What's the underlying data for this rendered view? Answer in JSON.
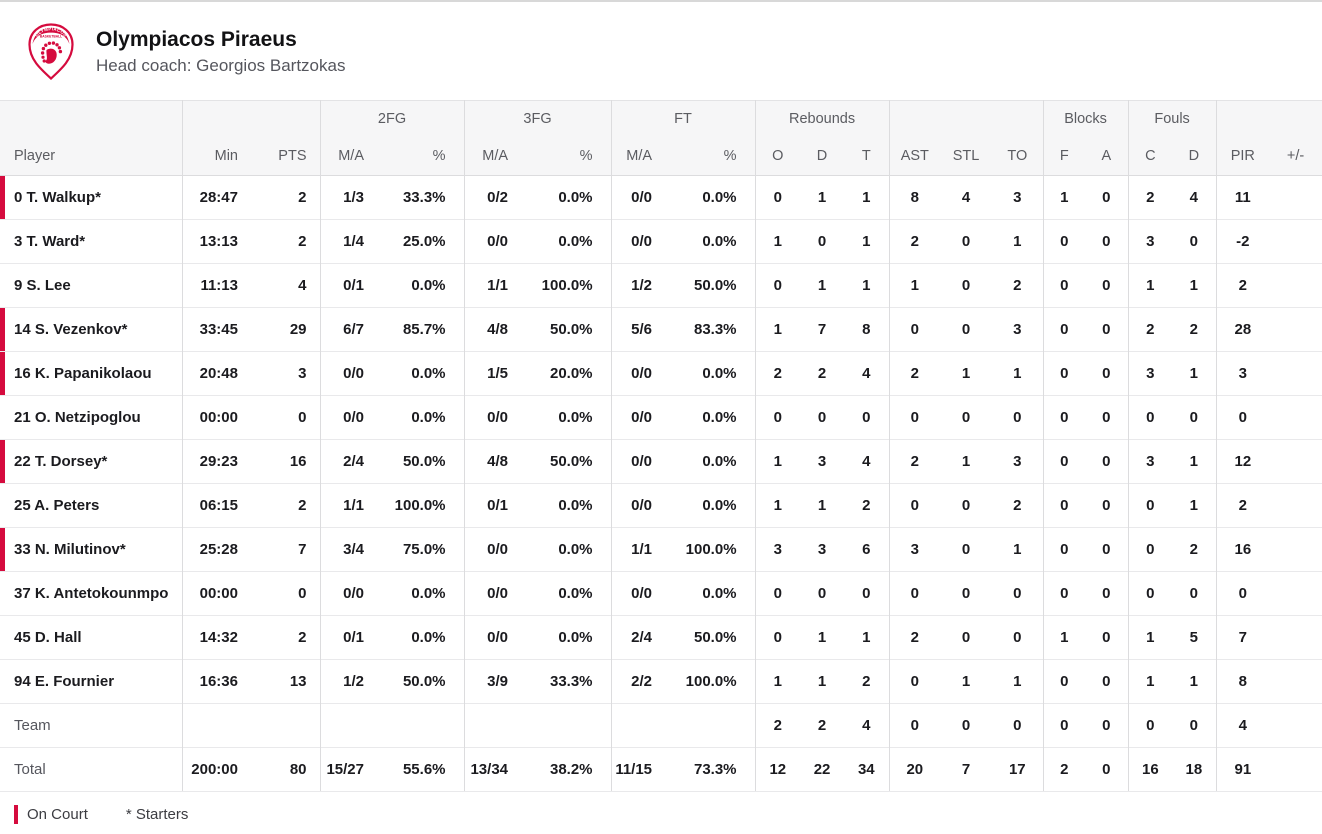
{
  "team": {
    "name": "Olympiacos Piraeus",
    "coach": "Head coach: Georgios Bartzokas",
    "logo_text_top": "OLYMPIACOS",
    "logo_text_bottom": "BASKETBALL"
  },
  "colors": {
    "accent": "#d50b3e"
  },
  "table": {
    "groups": [
      "2FG",
      "3FG",
      "FT",
      "Rebounds",
      "Blocks",
      "Fouls"
    ],
    "columns": [
      "Player",
      "Min",
      "PTS",
      "M/A",
      "%",
      "M/A",
      "%",
      "M/A",
      "%",
      "O",
      "D",
      "T",
      "AST",
      "STL",
      "TO",
      "F",
      "A",
      "C",
      "D",
      "PIR",
      "+/-"
    ],
    "rows": [
      {
        "name": "0 T. Walkup*",
        "on_court": true,
        "cells": [
          "28:47",
          "2",
          "1/3",
          "33.3%",
          "0/2",
          "0.0%",
          "0/0",
          "0.0%",
          "0",
          "1",
          "1",
          "8",
          "4",
          "3",
          "1",
          "0",
          "2",
          "4",
          "11",
          ""
        ]
      },
      {
        "name": "3 T. Ward*",
        "on_court": false,
        "cells": [
          "13:13",
          "2",
          "1/4",
          "25.0%",
          "0/0",
          "0.0%",
          "0/0",
          "0.0%",
          "1",
          "0",
          "1",
          "2",
          "0",
          "1",
          "0",
          "0",
          "3",
          "0",
          "-2",
          ""
        ]
      },
      {
        "name": "9 S. Lee",
        "on_court": false,
        "cells": [
          "11:13",
          "4",
          "0/1",
          "0.0%",
          "1/1",
          "100.0%",
          "1/2",
          "50.0%",
          "0",
          "1",
          "1",
          "1",
          "0",
          "2",
          "0",
          "0",
          "1",
          "1",
          "2",
          ""
        ]
      },
      {
        "name": "14 S. Vezenkov*",
        "on_court": true,
        "cells": [
          "33:45",
          "29",
          "6/7",
          "85.7%",
          "4/8",
          "50.0%",
          "5/6",
          "83.3%",
          "1",
          "7",
          "8",
          "0",
          "0",
          "3",
          "0",
          "0",
          "2",
          "2",
          "28",
          ""
        ]
      },
      {
        "name": "16 K. Papanikolaou",
        "on_court": true,
        "cells": [
          "20:48",
          "3",
          "0/0",
          "0.0%",
          "1/5",
          "20.0%",
          "0/0",
          "0.0%",
          "2",
          "2",
          "4",
          "2",
          "1",
          "1",
          "0",
          "0",
          "3",
          "1",
          "3",
          ""
        ]
      },
      {
        "name": "21 O. Netzipoglou",
        "on_court": false,
        "cells": [
          "00:00",
          "0",
          "0/0",
          "0.0%",
          "0/0",
          "0.0%",
          "0/0",
          "0.0%",
          "0",
          "0",
          "0",
          "0",
          "0",
          "0",
          "0",
          "0",
          "0",
          "0",
          "0",
          ""
        ]
      },
      {
        "name": "22 T. Dorsey*",
        "on_court": true,
        "cells": [
          "29:23",
          "16",
          "2/4",
          "50.0%",
          "4/8",
          "50.0%",
          "0/0",
          "0.0%",
          "1",
          "3",
          "4",
          "2",
          "1",
          "3",
          "0",
          "0",
          "3",
          "1",
          "12",
          ""
        ]
      },
      {
        "name": "25 A. Peters",
        "on_court": false,
        "cells": [
          "06:15",
          "2",
          "1/1",
          "100.0%",
          "0/1",
          "0.0%",
          "0/0",
          "0.0%",
          "1",
          "1",
          "2",
          "0",
          "0",
          "2",
          "0",
          "0",
          "0",
          "1",
          "2",
          ""
        ]
      },
      {
        "name": "33 N. Milutinov*",
        "on_court": true,
        "cells": [
          "25:28",
          "7",
          "3/4",
          "75.0%",
          "0/0",
          "0.0%",
          "1/1",
          "100.0%",
          "3",
          "3",
          "6",
          "3",
          "0",
          "1",
          "0",
          "0",
          "0",
          "2",
          "16",
          ""
        ]
      },
      {
        "name": "37 K. Antetokounmpo",
        "on_court": false,
        "cells": [
          "00:00",
          "0",
          "0/0",
          "0.0%",
          "0/0",
          "0.0%",
          "0/0",
          "0.0%",
          "0",
          "0",
          "0",
          "0",
          "0",
          "0",
          "0",
          "0",
          "0",
          "0",
          "0",
          ""
        ]
      },
      {
        "name": "45 D. Hall",
        "on_court": false,
        "cells": [
          "14:32",
          "2",
          "0/1",
          "0.0%",
          "0/0",
          "0.0%",
          "2/4",
          "50.0%",
          "0",
          "1",
          "1",
          "2",
          "0",
          "0",
          "1",
          "0",
          "1",
          "5",
          "7",
          ""
        ]
      },
      {
        "name": "94 E. Fournier",
        "on_court": false,
        "cells": [
          "16:36",
          "13",
          "1/2",
          "50.0%",
          "3/9",
          "33.3%",
          "2/2",
          "100.0%",
          "1",
          "1",
          "2",
          "0",
          "1",
          "1",
          "0",
          "0",
          "1",
          "1",
          "8",
          ""
        ]
      }
    ],
    "team_row": {
      "name": "Team",
      "on_court": false,
      "cells": [
        "",
        "",
        "",
        "",
        "",
        "",
        "",
        "",
        "2",
        "2",
        "4",
        "0",
        "0",
        "0",
        "0",
        "0",
        "0",
        "0",
        "4",
        ""
      ]
    },
    "total_row": {
      "name": "Total",
      "on_court": false,
      "cells": [
        "200:00",
        "80",
        "15/27",
        "55.6%",
        "13/34",
        "38.2%",
        "11/15",
        "73.3%",
        "12",
        "22",
        "34",
        "20",
        "7",
        "17",
        "2",
        "0",
        "16",
        "18",
        "91",
        ""
      ]
    }
  },
  "legend": {
    "on_court": "On Court",
    "starters": "* Starters"
  }
}
